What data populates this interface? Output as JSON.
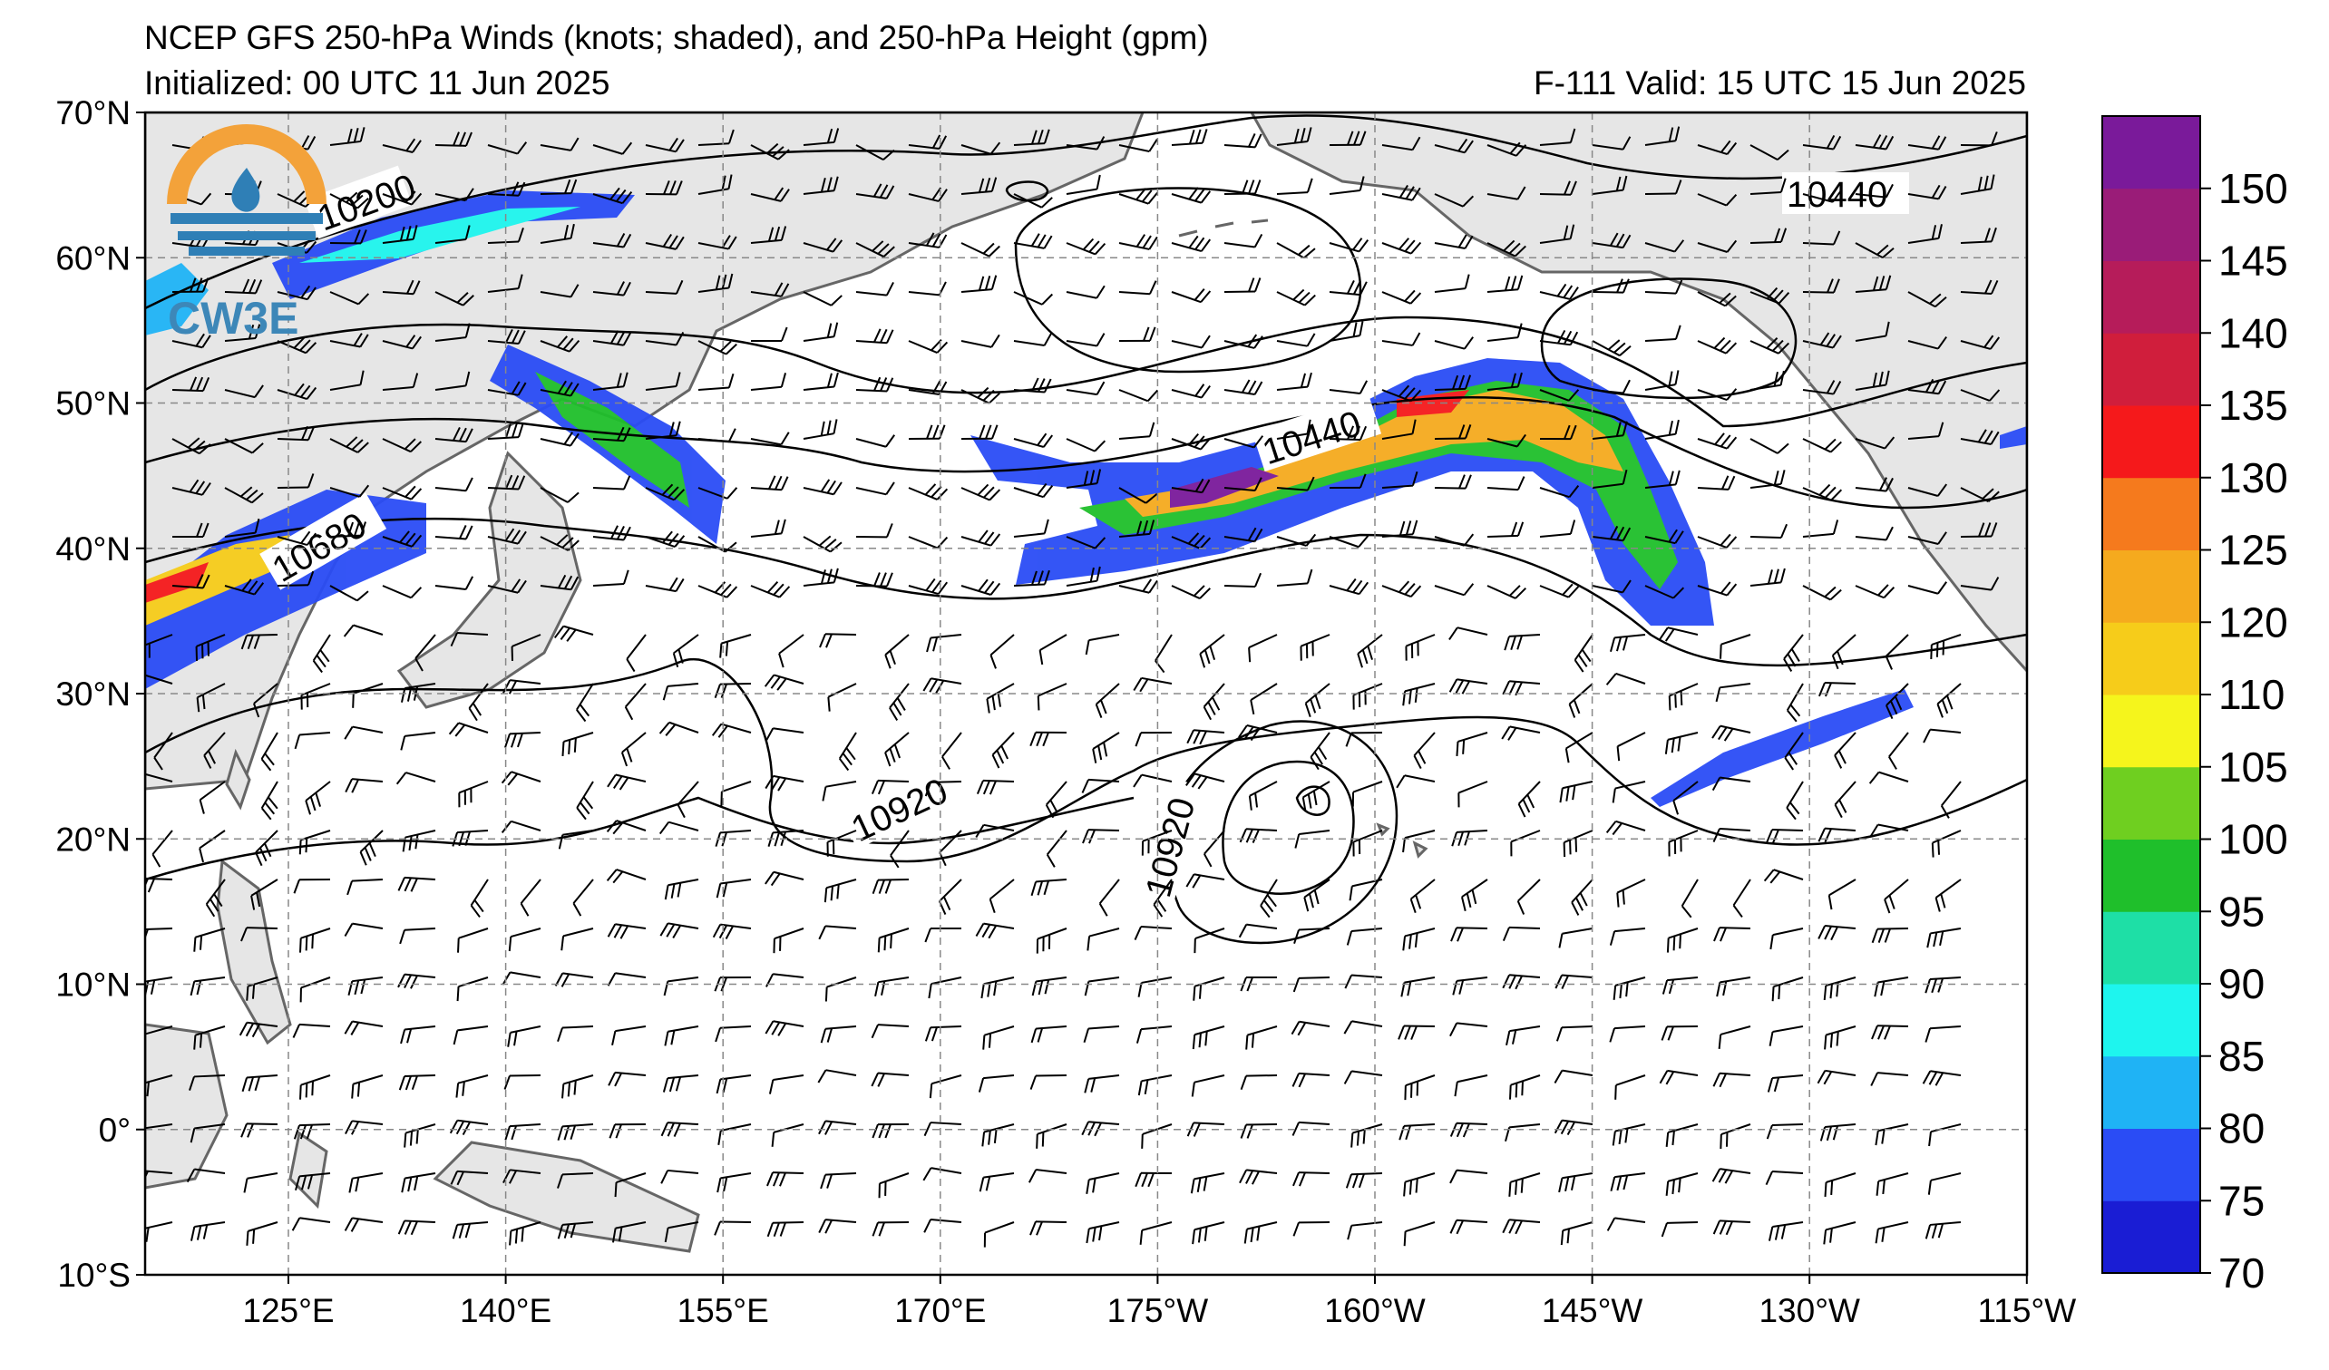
{
  "header": {
    "title": "NCEP GFS 250-hPa Winds (knots; shaded), and 250-hPa Height (gpm)",
    "initialized": "Initialized: 00 UTC 11 Jun 2025",
    "forecast": "F-111  Valid: 15 UTC 15 Jun 2025"
  },
  "logo": {
    "text": "CW3E",
    "colors": {
      "orange": "#f3a23a",
      "blue": "#2f7fb6",
      "teal": "#3d87b8"
    }
  },
  "map": {
    "lon_labels": [
      "125°E",
      "140°E",
      "155°E",
      "170°E",
      "175°W",
      "160°W",
      "145°W",
      "130°W",
      "115°W"
    ],
    "lat_labels": [
      "70°N",
      "60°N",
      "50°N",
      "40°N",
      "30°N",
      "20°N",
      "10°N",
      "0°",
      "10°S"
    ],
    "land_color": "#e6e6e6",
    "coast_color": "#666666"
  },
  "contour_labels": [
    "10200",
    "10440",
    "10680",
    "10440",
    "10920",
    "10920"
  ],
  "colorbar": {
    "levels": [
      "70",
      "75",
      "80",
      "85",
      "90",
      "95",
      "100",
      "105",
      "110",
      "120",
      "125",
      "130",
      "135",
      "140",
      "145",
      "150"
    ],
    "colors": [
      "#1a1dd4",
      "#2a4cf5",
      "#1fb3f5",
      "#1ef5ee",
      "#1edfa6",
      "#1fbf2b",
      "#6fcf20",
      "#f5f51c",
      "#f6cc1a",
      "#f5aa1e",
      "#f57a1d",
      "#f5191b",
      "#d01e3c",
      "#b61c5a",
      "#9a1c78",
      "#7a1a9a"
    ]
  }
}
